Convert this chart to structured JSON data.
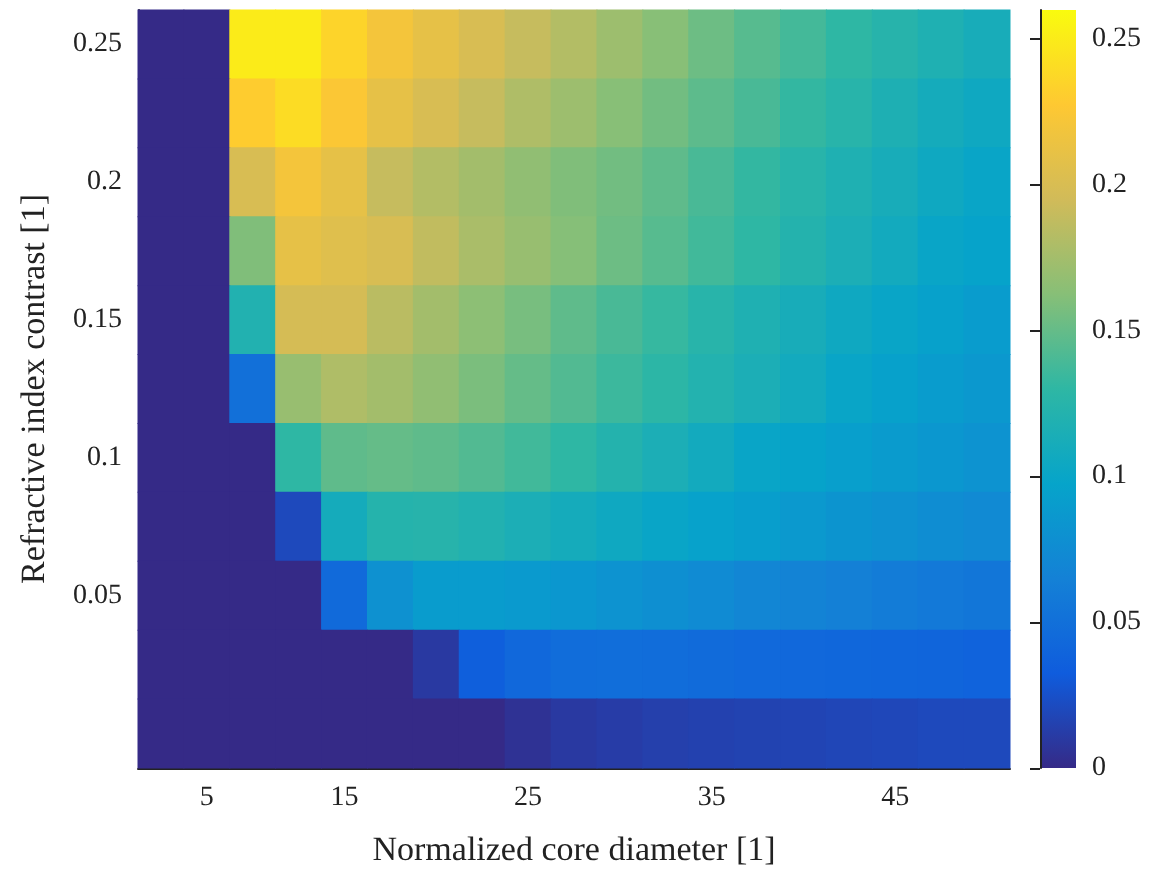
{
  "chart_data": {
    "type": "heatmap",
    "xlabel": "Normalized core diameter [1]",
    "ylabel": "Refractive index contrast [1]",
    "categories": [
      null,
      "5",
      null,
      null,
      "15",
      null,
      null,
      null,
      "25",
      null,
      null,
      null,
      "35",
      null,
      null,
      null,
      "45",
      null,
      null
    ],
    "y_categories": [
      "0.25",
      null,
      "0.2",
      null,
      "0.15",
      null,
      "0.1",
      null,
      "0.05",
      null,
      null
    ],
    "cells": [
      [
        0,
        0,
        0.25,
        0.25,
        0.235,
        0.22,
        0.21,
        0.2,
        0.19,
        0.182,
        0.172,
        0.163,
        0.153,
        0.145,
        0.138,
        0.13,
        0.124,
        0.118,
        0.112
      ],
      [
        0,
        0,
        0.23,
        0.24,
        0.225,
        0.21,
        0.2,
        0.19,
        0.18,
        0.172,
        0.163,
        0.155,
        0.147,
        0.14,
        0.132,
        0.125,
        0.117,
        0.11,
        0.105
      ],
      [
        0,
        0,
        0.2,
        0.22,
        0.21,
        0.19,
        0.182,
        0.175,
        0.167,
        0.16,
        0.155,
        0.148,
        0.14,
        0.132,
        0.125,
        0.118,
        0.112,
        0.105,
        0.1
      ],
      [
        0,
        0,
        0.16,
        0.21,
        0.205,
        0.2,
        0.188,
        0.178,
        0.17,
        0.162,
        0.153,
        0.145,
        0.137,
        0.13,
        0.122,
        0.115,
        0.108,
        0.1,
        0.097
      ],
      [
        0,
        0,
        0.12,
        0.198,
        0.198,
        0.185,
        0.175,
        0.165,
        0.157,
        0.148,
        0.14,
        0.133,
        0.125,
        0.118,
        0.112,
        0.105,
        0.1,
        0.095,
        0.09
      ],
      [
        0,
        0,
        0.05,
        0.17,
        0.18,
        0.175,
        0.167,
        0.158,
        0.15,
        0.143,
        0.135,
        0.128,
        0.121,
        0.115,
        0.108,
        0.1,
        0.095,
        0.09,
        0.086
      ],
      [
        0,
        0,
        0,
        0.13,
        0.148,
        0.15,
        0.148,
        0.143,
        0.137,
        0.13,
        0.122,
        0.115,
        0.108,
        0.1,
        0.097,
        0.093,
        0.089,
        0.085,
        0.082
      ],
      [
        0,
        0,
        0,
        0.02,
        0.11,
        0.123,
        0.124,
        0.12,
        0.115,
        0.11,
        0.105,
        0.1,
        0.096,
        0.092,
        0.087,
        0.083,
        0.08,
        0.076,
        0.073
      ],
      [
        0,
        0,
        0,
        0,
        0.045,
        0.08,
        0.09,
        0.09,
        0.088,
        0.085,
        0.082,
        0.078,
        0.074,
        0.07,
        0.067,
        0.064,
        0.061,
        0.058,
        0.055
      ],
      [
        0,
        0,
        0,
        0,
        0,
        0,
        0.01,
        0.035,
        0.043,
        0.047,
        0.048,
        0.047,
        0.046,
        0.044,
        0.043,
        0.042,
        0.041,
        0.04,
        0.039
      ],
      [
        0,
        0,
        0,
        0,
        0,
        0,
        0,
        0,
        0.005,
        0.01,
        0.012,
        0.014,
        0.015,
        0.016,
        0.017,
        0.018,
        0.019,
        0.02,
        0.02
      ]
    ],
    "clim": [
      0,
      0.26
    ],
    "cticks": [
      0,
      0.05,
      0.1,
      0.15,
      0.2,
      0.25
    ]
  }
}
